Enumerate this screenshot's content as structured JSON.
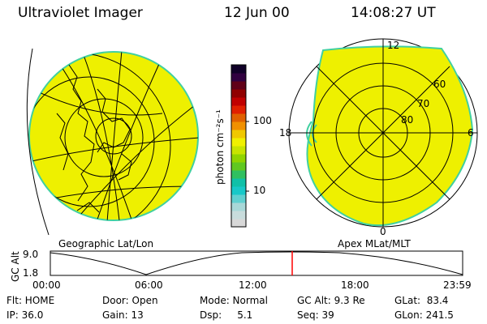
{
  "header": {
    "title": "Ultraviolet Imager",
    "date": "12 Jun 00",
    "time": "14:08:27 UT"
  },
  "colorbar": {
    "unit_label": "photon cm⁻²s⁻¹",
    "ticks": [
      "100",
      "10"
    ],
    "colors": [
      "#d8d8d8",
      "#c8dcdc",
      "#a8d8d8",
      "#60d0d0",
      "#18c8c8",
      "#10c0a8",
      "#30c060",
      "#60c820",
      "#90d400",
      "#c8e400",
      "#f0f000",
      "#f0c800",
      "#f09000",
      "#e06000",
      "#e02000",
      "#c00000",
      "#900000",
      "#600018",
      "#300040",
      "#100028"
    ]
  },
  "left_map": {
    "label": "Geographic Lat/Lon",
    "fill": "#eef000",
    "edge": "#40d0a0"
  },
  "right_map": {
    "label": "Apex MLat/MLT",
    "mlt_labels": [
      "12",
      "18",
      "6",
      "0"
    ],
    "lat_labels": [
      "60",
      "70",
      "80"
    ],
    "fill": "#eef000"
  },
  "alt_plot": {
    "axis_label": "GC Alt",
    "y_ticks": [
      "9.0",
      "1.8"
    ],
    "x_ticks": [
      "00:00",
      "06:00",
      "12:00",
      "18:00",
      "23:59"
    ],
    "current_time_marker_color": "#ff0000"
  },
  "footer": {
    "row1": [
      "Flt: HOME",
      "Door: Open",
      "Mode: Normal",
      "GC Alt: 9.3 Re",
      "GLat:  83.4"
    ],
    "row2": [
      "IP: 36.0",
      "Gain: 13",
      "Dsp:     5.1",
      "Seq: 39",
      "GLon: 241.5"
    ]
  }
}
